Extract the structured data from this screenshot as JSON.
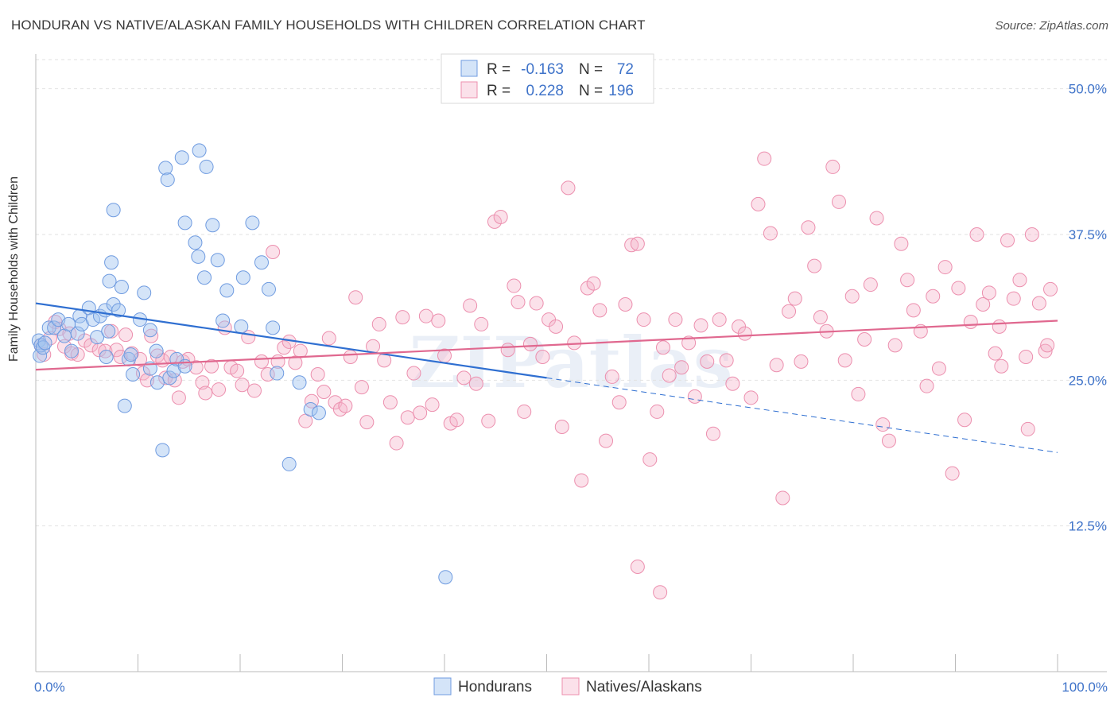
{
  "title": "HONDURAN VS NATIVE/ALASKAN FAMILY HOUSEHOLDS WITH CHILDREN CORRELATION CHART",
  "source": "Source: ZipAtlas.com",
  "watermark": "ZIPatlas",
  "colors": {
    "blue": "#6f9be0",
    "blue_fill": "rgba(160,195,240,0.45)",
    "blue_line": "#2f6fd1",
    "pink": "#ec8fae",
    "pink_fill": "rgba(246,180,202,0.40)",
    "pink_line": "#e0688f",
    "axis_text": "#3f73c9",
    "grid": "#e2e2e2"
  },
  "stats": [
    {
      "r_label": "R =",
      "r_value": "-0.163",
      "n_label": "N =",
      "n_value": "72"
    },
    {
      "r_label": "R =",
      "r_value": "0.228",
      "n_label": "N =",
      "n_value": "196"
    }
  ],
  "chart_data": {
    "type": "scatter",
    "title": "HONDURAN VS NATIVE/ALASKAN FAMILY HOUSEHOLDS WITH CHILDREN CORRELATION CHART",
    "xlabel": "",
    "ylabel": "Family Households with Children",
    "xlim": [
      0,
      100
    ],
    "ylim": [
      0,
      52.5
    ],
    "x_tick_labels": [
      "0.0%",
      "100.0%"
    ],
    "y_ticks": [
      12.5,
      25.0,
      37.5,
      50.0
    ],
    "y_tick_labels": [
      "12.5%",
      "25.0%",
      "37.5%",
      "50.0%"
    ],
    "grid": true,
    "legend_position": "bottom-center",
    "series": [
      {
        "name": "Hondurans",
        "color": "#6f9be0",
        "trend": {
          "x": [
            0,
            50
          ],
          "y": [
            31.6,
            25.2
          ],
          "dashed_to": [
            100,
            18.8
          ]
        },
        "points": [
          [
            0.3,
            28.4
          ],
          [
            0.4,
            27.1
          ],
          [
            0.5,
            28.0
          ],
          [
            0.7,
            27.8
          ],
          [
            0.9,
            28.2
          ],
          [
            1.3,
            29.5
          ],
          [
            1.8,
            29.5
          ],
          [
            2.2,
            30.2
          ],
          [
            2.8,
            28.8
          ],
          [
            3.2,
            29.8
          ],
          [
            3.5,
            27.5
          ],
          [
            4.1,
            29.0
          ],
          [
            4.3,
            30.5
          ],
          [
            4.5,
            29.8
          ],
          [
            5.2,
            31.2
          ],
          [
            5.6,
            30.2
          ],
          [
            6.0,
            28.7
          ],
          [
            6.3,
            30.5
          ],
          [
            6.8,
            31.0
          ],
          [
            6.9,
            27.0
          ],
          [
            7.1,
            29.2
          ],
          [
            7.6,
            31.5
          ],
          [
            8.1,
            31.0
          ],
          [
            8.7,
            22.8
          ],
          [
            7.2,
            33.5
          ],
          [
            7.4,
            35.1
          ],
          [
            7.6,
            39.6
          ],
          [
            8.4,
            33.0
          ],
          [
            9.1,
            26.8
          ],
          [
            9.3,
            27.2
          ],
          [
            9.5,
            25.5
          ],
          [
            10.2,
            30.2
          ],
          [
            10.6,
            32.5
          ],
          [
            11.2,
            29.3
          ],
          [
            11.8,
            27.5
          ],
          [
            11.2,
            26.0
          ],
          [
            11.9,
            24.8
          ],
          [
            12.4,
            19.0
          ],
          [
            13.1,
            25.2
          ],
          [
            13.5,
            25.8
          ],
          [
            13.8,
            26.8
          ],
          [
            14.6,
            26.2
          ],
          [
            12.7,
            43.2
          ],
          [
            12.9,
            42.2
          ],
          [
            14.3,
            44.1
          ],
          [
            16.0,
            44.7
          ],
          [
            16.7,
            43.3
          ],
          [
            14.6,
            38.5
          ],
          [
            15.6,
            36.8
          ],
          [
            15.9,
            35.6
          ],
          [
            16.5,
            33.8
          ],
          [
            17.3,
            38.3
          ],
          [
            17.8,
            35.3
          ],
          [
            18.3,
            30.1
          ],
          [
            21.2,
            38.5
          ],
          [
            22.1,
            35.1
          ],
          [
            22.8,
            32.8
          ],
          [
            20.1,
            29.6
          ],
          [
            20.3,
            33.8
          ],
          [
            18.7,
            32.7
          ],
          [
            25.8,
            24.8
          ],
          [
            24.8,
            17.8
          ],
          [
            26.9,
            22.5
          ],
          [
            27.7,
            22.2
          ],
          [
            23.2,
            29.5
          ],
          [
            23.6,
            25.6
          ],
          [
            40.1,
            8.1
          ]
        ]
      },
      {
        "name": "Natives/Alaskans",
        "color": "#ec8fae",
        "trend": {
          "x": [
            0,
            100
          ],
          "y": [
            25.9,
            30.1
          ]
        },
        "points": [
          [
            0.5,
            28.0
          ],
          [
            0.8,
            27.2
          ],
          [
            1.4,
            28.6
          ],
          [
            1.9,
            30.0
          ],
          [
            2.3,
            29.4
          ],
          [
            2.8,
            27.9
          ],
          [
            3.3,
            29.0
          ],
          [
            3.5,
            27.3
          ],
          [
            4.1,
            27.2
          ],
          [
            4.8,
            28.4
          ],
          [
            5.4,
            28.0
          ],
          [
            6.2,
            27.6
          ],
          [
            6.8,
            27.5
          ],
          [
            7.4,
            29.2
          ],
          [
            7.9,
            27.6
          ],
          [
            8.3,
            27.0
          ],
          [
            8.8,
            28.9
          ],
          [
            9.4,
            27.3
          ],
          [
            10.2,
            26.8
          ],
          [
            10.5,
            25.6
          ],
          [
            10.9,
            25.0
          ],
          [
            11.3,
            28.8
          ],
          [
            11.9,
            27.1
          ],
          [
            12.4,
            26.7
          ],
          [
            12.7,
            25.2
          ],
          [
            13.2,
            27.0
          ],
          [
            13.6,
            25.0
          ],
          [
            14.0,
            23.5
          ],
          [
            14.4,
            26.6
          ],
          [
            14.9,
            26.8
          ],
          [
            15.7,
            26.1
          ],
          [
            16.3,
            24.8
          ],
          [
            16.6,
            23.9
          ],
          [
            17.2,
            26.2
          ],
          [
            17.9,
            24.2
          ],
          [
            18.5,
            29.5
          ],
          [
            19.1,
            26.1
          ],
          [
            19.7,
            25.8
          ],
          [
            20.2,
            24.6
          ],
          [
            20.8,
            28.7
          ],
          [
            21.4,
            24.1
          ],
          [
            22.1,
            26.6
          ],
          [
            22.7,
            25.5
          ],
          [
            23.2,
            36.0
          ],
          [
            23.7,
            26.6
          ],
          [
            24.3,
            27.8
          ],
          [
            24.8,
            28.3
          ],
          [
            25.4,
            26.5
          ],
          [
            25.9,
            27.5
          ],
          [
            26.4,
            21.5
          ],
          [
            27.0,
            23.2
          ],
          [
            27.6,
            25.5
          ],
          [
            28.2,
            24.0
          ],
          [
            28.7,
            28.6
          ],
          [
            29.3,
            23.1
          ],
          [
            29.8,
            22.5
          ],
          [
            30.3,
            22.8
          ],
          [
            30.8,
            27.0
          ],
          [
            31.3,
            32.1
          ],
          [
            31.9,
            24.4
          ],
          [
            32.4,
            21.4
          ],
          [
            33.0,
            27.9
          ],
          [
            33.6,
            29.8
          ],
          [
            34.1,
            26.7
          ],
          [
            34.7,
            23.1
          ],
          [
            35.3,
            19.6
          ],
          [
            35.9,
            30.4
          ],
          [
            36.4,
            21.8
          ],
          [
            37.0,
            25.6
          ],
          [
            37.6,
            22.2
          ],
          [
            38.2,
            30.5
          ],
          [
            38.8,
            22.9
          ],
          [
            39.4,
            30.1
          ],
          [
            40.0,
            27.1
          ],
          [
            40.6,
            21.3
          ],
          [
            41.2,
            21.6
          ],
          [
            41.9,
            25.2
          ],
          [
            42.5,
            31.4
          ],
          [
            43.1,
            24.7
          ],
          [
            43.6,
            29.8
          ],
          [
            44.3,
            21.5
          ],
          [
            44.9,
            38.6
          ],
          [
            45.5,
            39.0
          ],
          [
            46.2,
            27.6
          ],
          [
            46.8,
            33.1
          ],
          [
            47.2,
            31.7
          ],
          [
            47.8,
            22.3
          ],
          [
            48.4,
            28.1
          ],
          [
            49.0,
            31.6
          ],
          [
            49.6,
            27.0
          ],
          [
            50.2,
            30.2
          ],
          [
            50.9,
            29.6
          ],
          [
            51.5,
            21.0
          ],
          [
            52.1,
            41.5
          ],
          [
            52.7,
            28.2
          ],
          [
            53.4,
            16.4
          ],
          [
            54.0,
            32.9
          ],
          [
            54.6,
            33.3
          ],
          [
            55.2,
            31.0
          ],
          [
            55.8,
            19.8
          ],
          [
            56.4,
            25.3
          ],
          [
            57.1,
            23.1
          ],
          [
            57.7,
            31.5
          ],
          [
            58.3,
            36.6
          ],
          [
            58.9,
            36.7
          ],
          [
            59.5,
            30.2
          ],
          [
            60.1,
            18.2
          ],
          [
            60.8,
            22.3
          ],
          [
            61.4,
            27.8
          ],
          [
            62.0,
            25.4
          ],
          [
            62.6,
            30.2
          ],
          [
            63.2,
            26.1
          ],
          [
            63.9,
            28.2
          ],
          [
            64.5,
            23.6
          ],
          [
            65.1,
            29.7
          ],
          [
            65.7,
            26.6
          ],
          [
            66.3,
            20.4
          ],
          [
            66.9,
            30.2
          ],
          [
            67.6,
            26.7
          ],
          [
            68.2,
            24.7
          ],
          [
            68.8,
            29.6
          ],
          [
            69.4,
            29.0
          ],
          [
            70.0,
            23.5
          ],
          [
            70.7,
            40.1
          ],
          [
            71.3,
            44.0
          ],
          [
            71.9,
            37.6
          ],
          [
            72.5,
            26.3
          ],
          [
            73.1,
            14.9
          ],
          [
            73.7,
            30.9
          ],
          [
            74.3,
            32.0
          ],
          [
            74.9,
            26.6
          ],
          [
            75.6,
            38.1
          ],
          [
            76.2,
            34.8
          ],
          [
            76.8,
            30.4
          ],
          [
            77.4,
            29.2
          ],
          [
            78.0,
            43.3
          ],
          [
            78.6,
            40.3
          ],
          [
            79.2,
            26.7
          ],
          [
            79.9,
            32.2
          ],
          [
            80.5,
            23.8
          ],
          [
            81.1,
            28.5
          ],
          [
            81.7,
            33.2
          ],
          [
            82.3,
            38.9
          ],
          [
            82.9,
            21.2
          ],
          [
            83.5,
            19.8
          ],
          [
            84.1,
            28.0
          ],
          [
            84.7,
            36.7
          ],
          [
            85.3,
            33.6
          ],
          [
            85.9,
            31.0
          ],
          [
            86.6,
            29.2
          ],
          [
            87.2,
            24.5
          ],
          [
            87.8,
            32.2
          ],
          [
            88.4,
            26.0
          ],
          [
            89.0,
            34.7
          ],
          [
            89.7,
            17.0
          ],
          [
            90.3,
            32.9
          ],
          [
            90.9,
            21.6
          ],
          [
            91.5,
            30.0
          ],
          [
            92.1,
            37.5
          ],
          [
            92.7,
            31.5
          ],
          [
            93.3,
            32.5
          ],
          [
            93.9,
            27.3
          ],
          [
            94.5,
            26.2
          ],
          [
            95.1,
            37.0
          ],
          [
            95.7,
            32.0
          ],
          [
            96.3,
            33.6
          ],
          [
            96.9,
            27.0
          ],
          [
            97.5,
            37.5
          ],
          [
            98.2,
            31.6
          ],
          [
            98.8,
            27.5
          ],
          [
            99.3,
            32.8
          ],
          [
            61.1,
            6.8
          ],
          [
            58.9,
            9.0
          ],
          [
            97.1,
            20.8
          ],
          [
            94.3,
            29.6
          ],
          [
            99.0,
            28.0
          ]
        ]
      }
    ]
  }
}
